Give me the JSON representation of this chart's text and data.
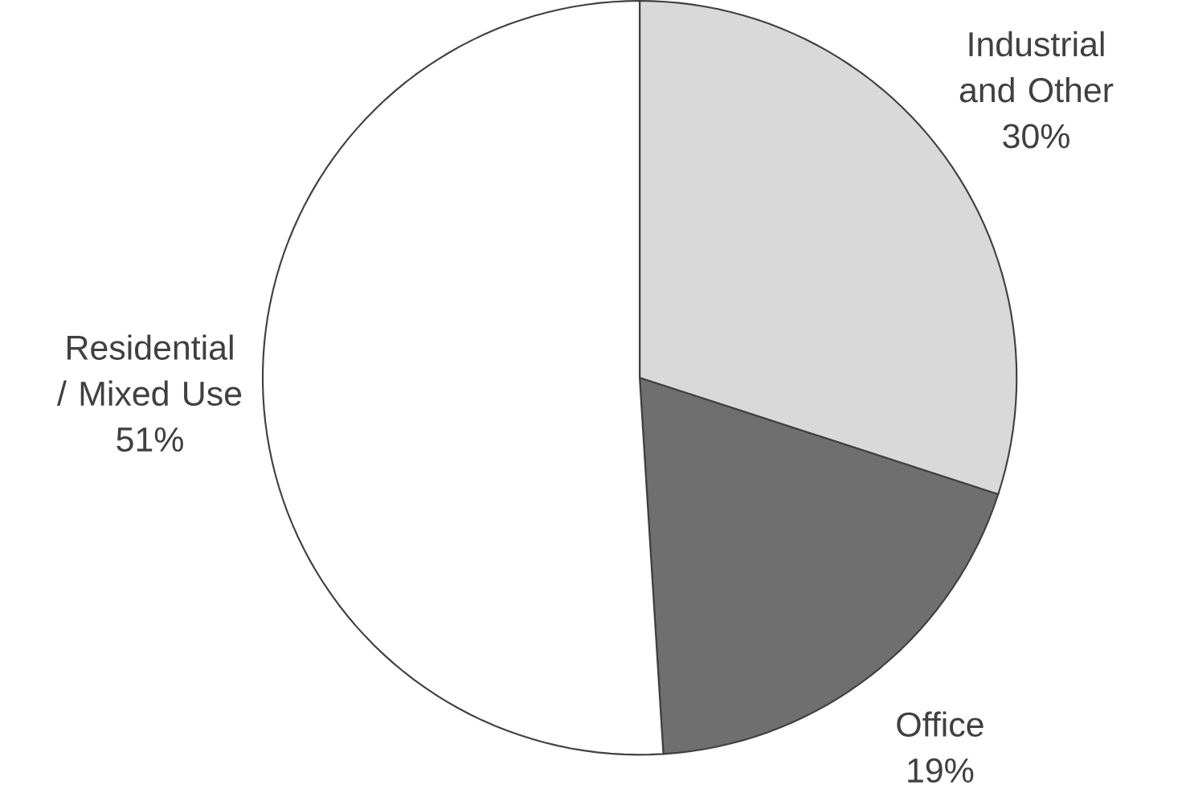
{
  "chart_data": {
    "type": "pie",
    "categories": [
      "Industrial and Other",
      "Office",
      "Residential / Mixed Use"
    ],
    "values": [
      30,
      19,
      51
    ],
    "value_labels": [
      "30%",
      "19%",
      "51%"
    ],
    "colors": [
      "#d9d9d9",
      "#6f6f6f",
      "#ffffff"
    ]
  }
}
